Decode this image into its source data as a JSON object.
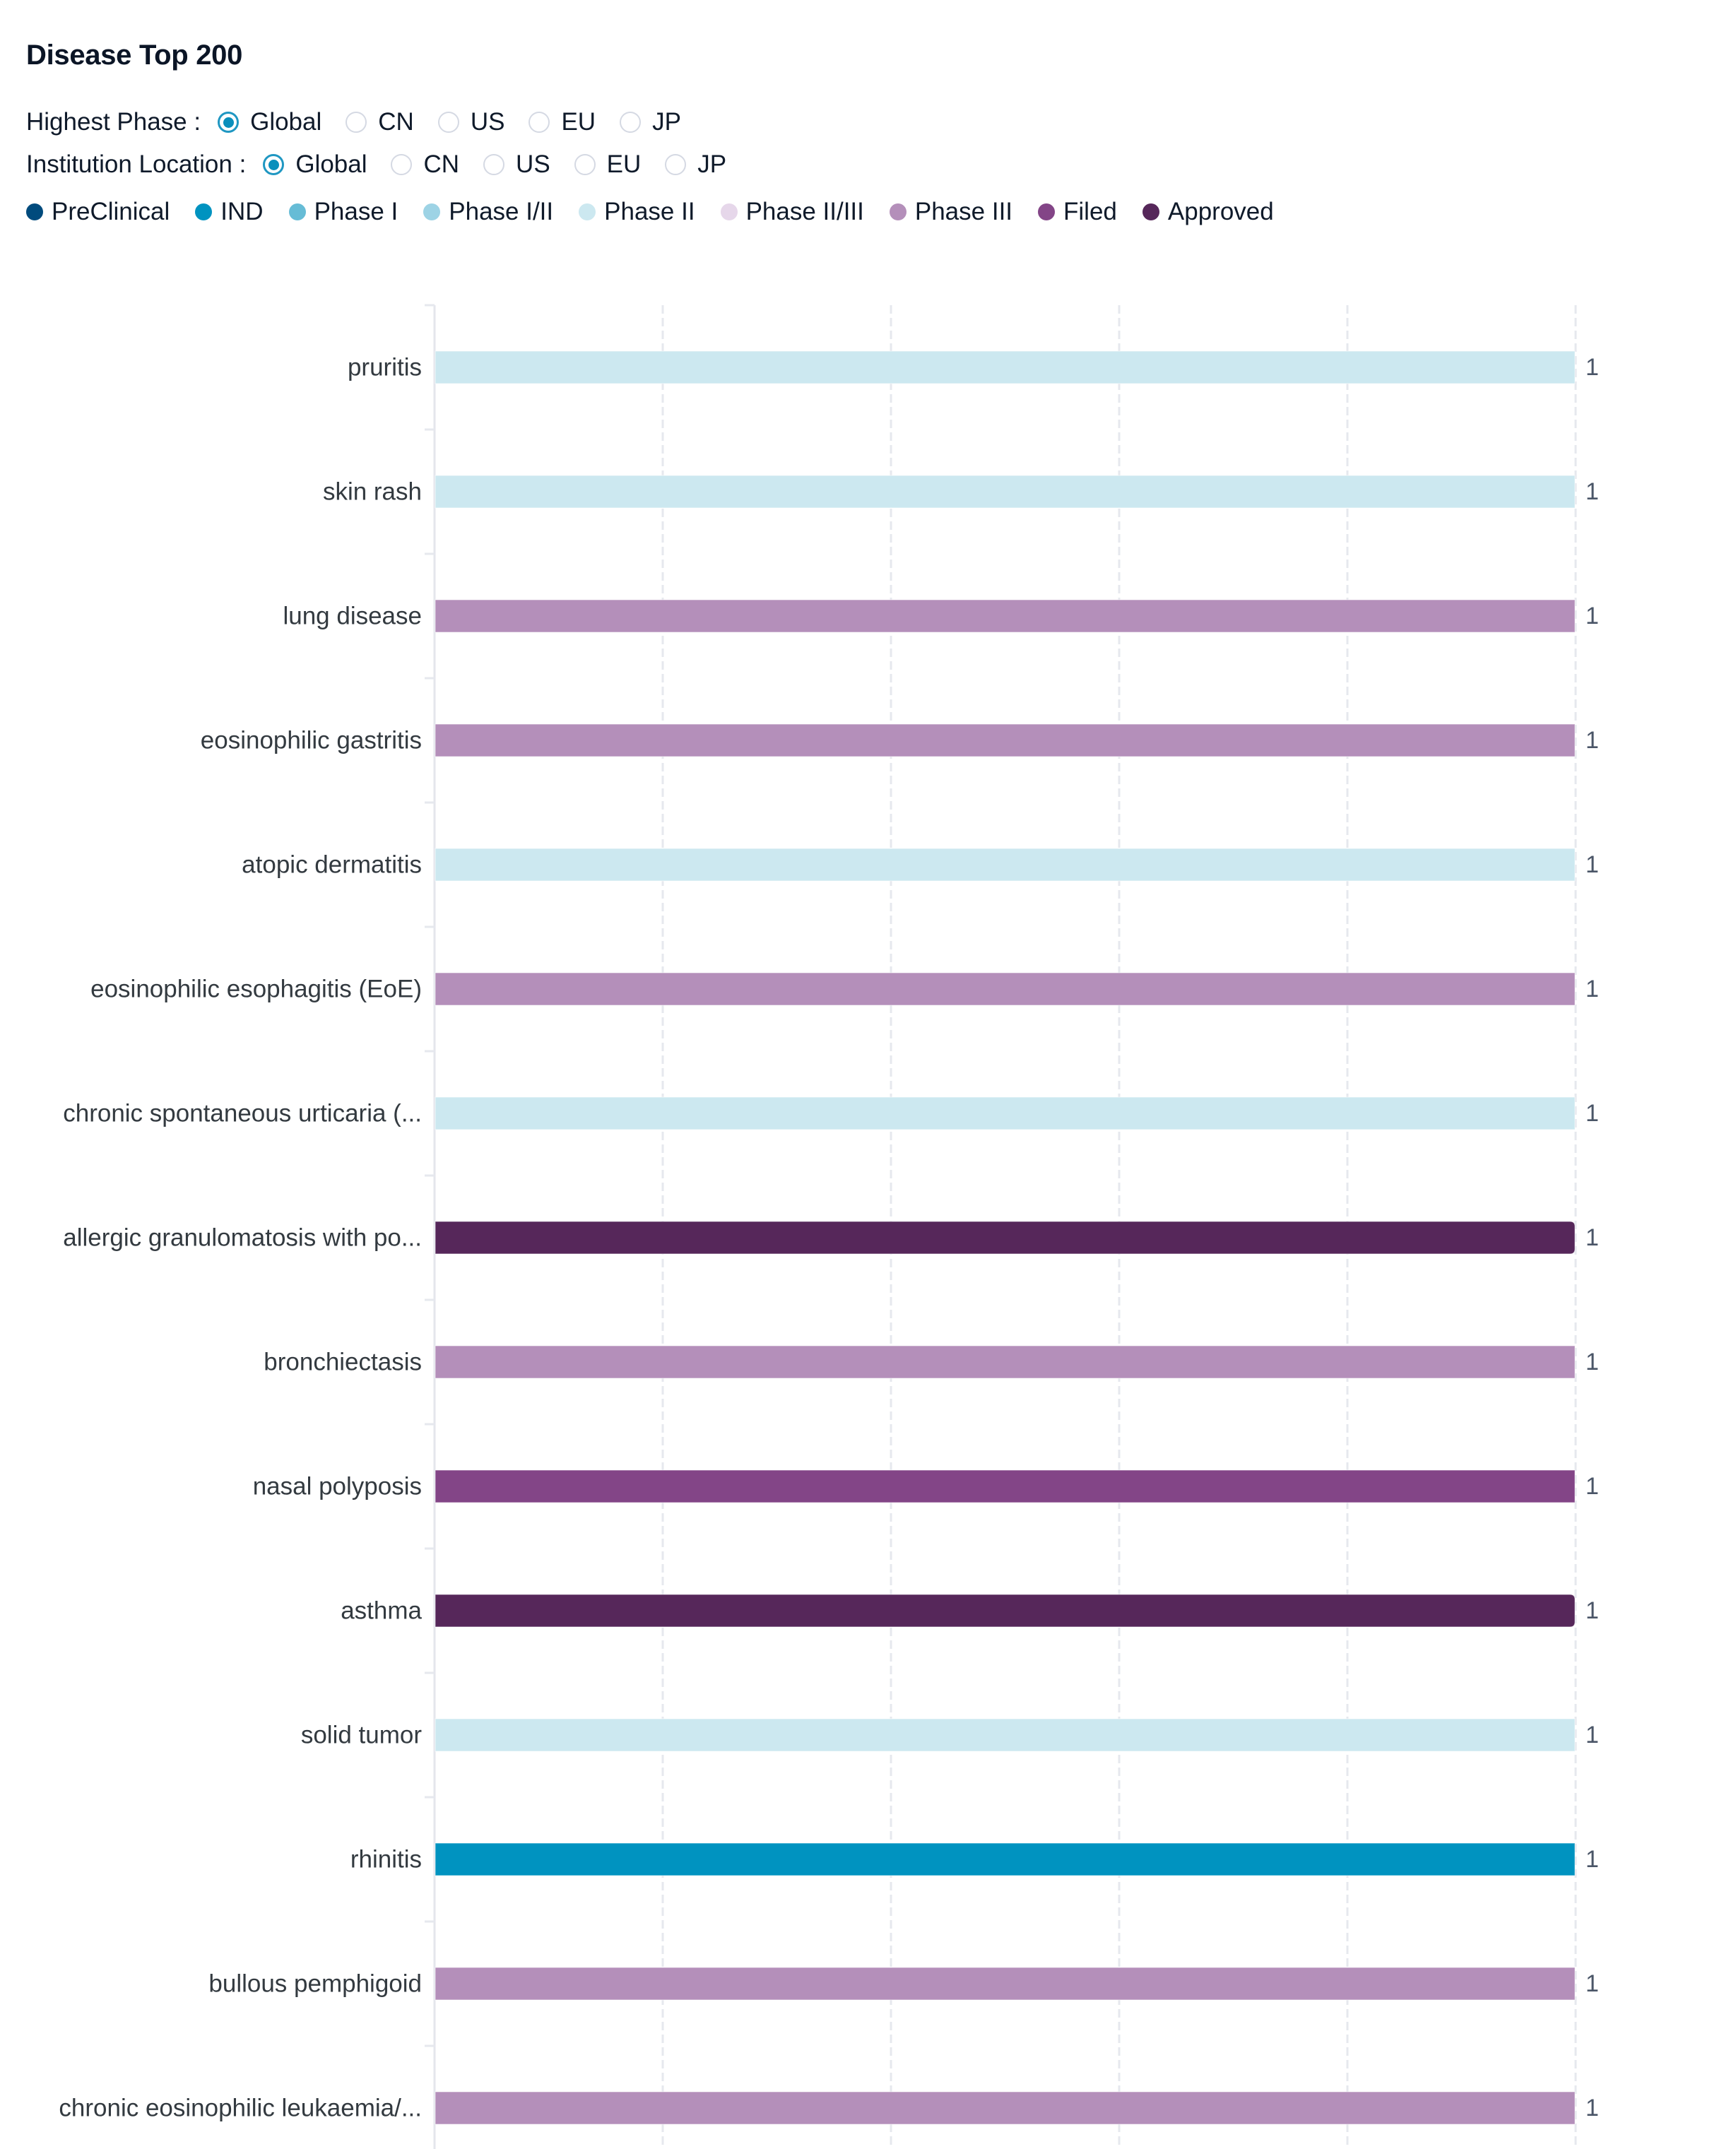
{
  "title": "Disease Top 200",
  "filters": {
    "highest_phase": {
      "label": "Highest Phase :",
      "options": [
        "Global",
        "CN",
        "US",
        "EU",
        "JP"
      ],
      "selected": "Global"
    },
    "institution_location": {
      "label": "Institution Location :",
      "options": [
        "Global",
        "CN",
        "US",
        "EU",
        "JP"
      ],
      "selected": "Global"
    }
  },
  "legend": [
    {
      "label": "PreClinical",
      "color": "#004b7d"
    },
    {
      "label": "IND",
      "color": "#0093c0"
    },
    {
      "label": "Phase I",
      "color": "#66bcd6"
    },
    {
      "label": "Phase I/II",
      "color": "#9dd3e5"
    },
    {
      "label": "Phase II",
      "color": "#cce8f0"
    },
    {
      "label": "Phase II/III",
      "color": "#e6d7ea"
    },
    {
      "label": "Phase III",
      "color": "#b48fba"
    },
    {
      "label": "Filed",
      "color": "#834587"
    },
    {
      "label": "Approved",
      "color": "#56275a"
    }
  ],
  "chart_data": {
    "type": "bar",
    "orientation": "horizontal",
    "title": "Disease Top 200",
    "xlabel": "",
    "ylabel": "",
    "xlim": [
      0,
      1
    ],
    "x_gridlines": [
      0,
      0.2,
      0.4,
      0.6,
      0.8,
      1
    ],
    "grid": true,
    "legend_position": "top-left",
    "categories": [
      "pruritis",
      "skin rash",
      "lung disease",
      "eosinophilic gastritis",
      "atopic dermatitis",
      "eosinophilic esophagitis (EoE)",
      "chronic spontaneous urticaria (...",
      "allergic granulomatosis with po...",
      "bronchiectasis",
      "nasal polyposis",
      "asthma",
      "solid tumor",
      "rhinitis",
      "bullous pemphigoid",
      "chronic eosinophilic leukaemia/..."
    ],
    "values": [
      1,
      1,
      1,
      1,
      1,
      1,
      1,
      1,
      1,
      1,
      1,
      1,
      1,
      1,
      1
    ],
    "phases": [
      "Phase II",
      "Phase II",
      "Phase III",
      "Phase III",
      "Phase II",
      "Phase III",
      "Phase II",
      "Approved",
      "Phase III",
      "Filed",
      "Approved",
      "Phase II",
      "IND",
      "Phase III",
      "Phase III"
    ],
    "value_labels": [
      "1",
      "1",
      "1",
      "1",
      "1",
      "1",
      "1",
      "1",
      "1",
      "1",
      "1",
      "1",
      "1",
      "1",
      "1"
    ]
  }
}
